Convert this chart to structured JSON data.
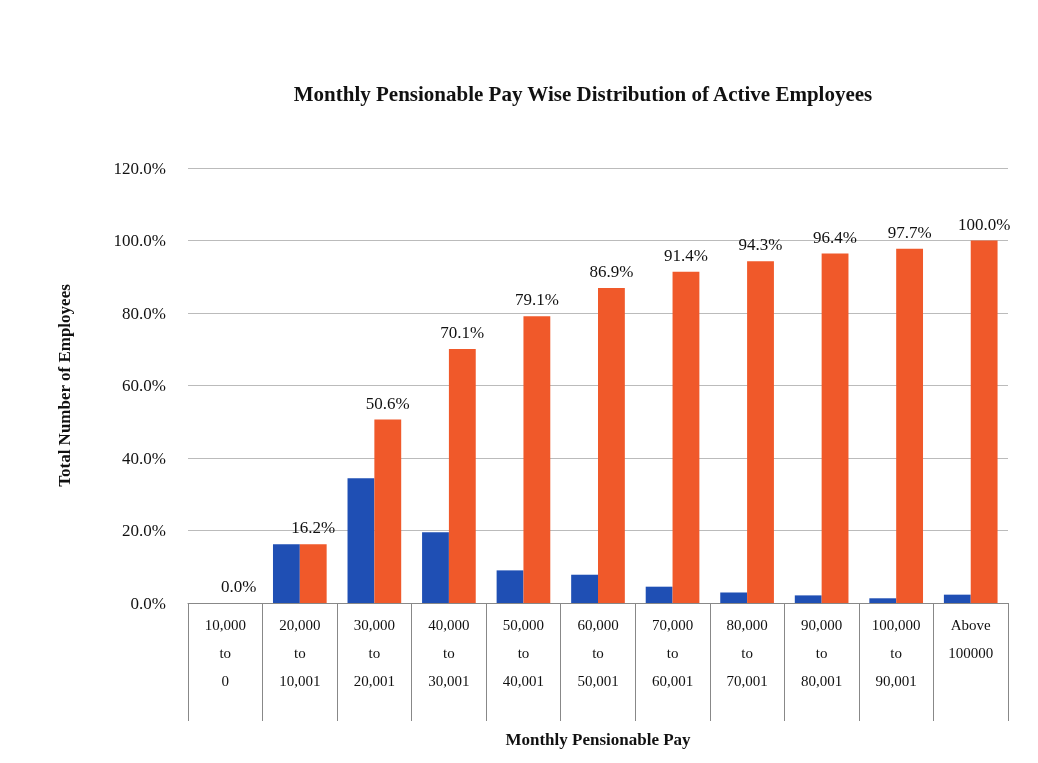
{
  "chart_data": {
    "type": "bar",
    "title": "Monthly Pensionable Pay Wise Distribution of Active Employees",
    "xlabel": "Monthly Pensionable Pay",
    "ylabel": "Total Number of Employees",
    "categories": [
      "10,000\nto\n0",
      "20,000\nto\n10,001",
      "30,000\nto\n20,001",
      "40,000\nto\n30,001",
      "50,000\nto\n40,001",
      "60,000\nto\n50,001",
      "70,000\nto\n60,001",
      "80,000\nto\n70,001",
      "90,000\nto\n80,001",
      "100,000\nto\n90,001",
      "Above\n100000"
    ],
    "series": [
      {
        "color": "#1f4fb4",
        "values": [
          0,
          16.2,
          34.4,
          19.5,
          9,
          7.8,
          4.5,
          2.9,
          2.1,
          1.3,
          2.3
        ]
      },
      {
        "color": "#f0592a",
        "values": [
          0,
          16.2,
          50.6,
          70.1,
          79.1,
          86.9,
          91.4,
          94.3,
          96.4,
          97.7,
          100
        ],
        "value_labels": [
          "0.0%",
          "16.2%",
          "50.6%",
          "70.1%",
          "79.1%",
          "86.9%",
          "91.4%",
          "94.3%",
          "96.4%",
          "97.7%",
          "100.0%"
        ]
      }
    ],
    "ylim": [
      0,
      120
    ],
    "yticks": [
      {
        "value": 0,
        "label": "0.0%"
      },
      {
        "value": 20,
        "label": "20.0%"
      },
      {
        "value": 40,
        "label": "40.0%"
      },
      {
        "value": 60,
        "label": "60.0%"
      },
      {
        "value": 80,
        "label": "80.0%"
      },
      {
        "value": 100,
        "label": "100.0%"
      },
      {
        "value": 120,
        "label": "120.0%"
      }
    ],
    "grid": "y"
  }
}
